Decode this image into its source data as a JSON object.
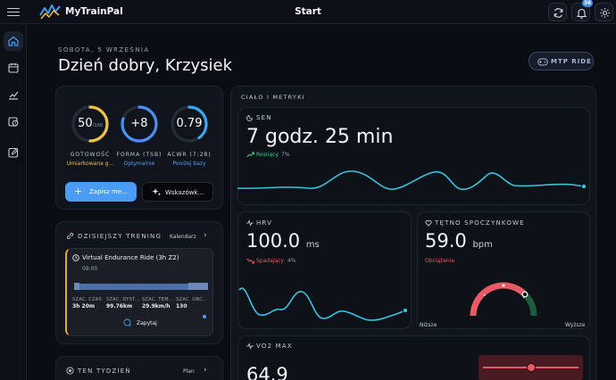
{
  "app": {
    "brand": "MyTrainPal",
    "page_title": "Start",
    "notification_count": "36",
    "icons": {
      "menu": "menu-icon",
      "refresh": "refresh-icon",
      "bell": "bell-icon",
      "settings": "gear-icon"
    }
  },
  "sidebar": {
    "items": [
      {
        "icon": "home-icon",
        "active": true
      },
      {
        "icon": "calendar-icon",
        "active": false
      },
      {
        "icon": "chart-icon",
        "active": false
      },
      {
        "icon": "clock-calendar-icon",
        "active": false
      },
      {
        "icon": "edit-icon",
        "active": false
      }
    ]
  },
  "header": {
    "date": "SOBOTA, 5 WRZEŚNIA",
    "greeting": "Dzień dobry, Krzysiek",
    "mtp_ride_label": "MTP RIDE"
  },
  "readiness": {
    "rings": [
      {
        "value": "50",
        "suffix": "/100",
        "label": "GOTOWOŚĆ",
        "sub": "Umiarkowana g...",
        "sub_color": "#f0c048",
        "color": "#f0c048",
        "fraction": 0.5
      },
      {
        "value": "+8",
        "suffix": "",
        "label": "FORMA (TSB)",
        "sub": "Optymalnie",
        "sub_color": "#5b9cf5",
        "color": "#4c8ef2",
        "fraction": 0.8
      },
      {
        "value": "0.79",
        "suffix": "",
        "label": "ACWR (7:28)",
        "sub": "Poniżej bazy",
        "sub_color": "#5b9cf5",
        "color": "#3aa8f0",
        "fraction": 0.4
      }
    ],
    "save_button": "Zapisz me...",
    "tips_button": "Wskazówk..."
  },
  "training": {
    "title": "DZISIEJSZY TRENING",
    "calendar_link": "Kalendarz",
    "workout_name": "Virtual Endurance Ride (3h Z2)",
    "time": "08:00",
    "stats": [
      {
        "label": "SZAC. CZAS",
        "value": "3h 20m"
      },
      {
        "label": "SZAC. DYST...",
        "value": "99.76km"
      },
      {
        "label": "SZAC. TEM...",
        "value": "29.9km/h"
      },
      {
        "label": "SZAC. OBC...",
        "value": "130"
      }
    ],
    "planned_label": "Zapytaj"
  },
  "week": {
    "title": "TEN TYDZIEŃ",
    "plan_link": "Plan"
  },
  "body_metrics": {
    "title": "CIAŁO I METRYKI",
    "sleep": {
      "label": "SEN",
      "value": "7 godz. 25 min",
      "trend": "Rosnący",
      "trend_pct": "7%"
    },
    "hrv": {
      "label": "HRV",
      "value": "100.0",
      "unit": "ms",
      "trend": "Spadający",
      "trend_pct": "4%"
    },
    "rhr": {
      "label": "TĘTNO SPOCZYNKOWE",
      "value": "59.0",
      "unit": "bpm",
      "status": "Obciążenie",
      "low": "Niższe",
      "high": "Wyższe"
    },
    "vo2": {
      "label": "VO2 MAX",
      "value": "64.9"
    }
  },
  "colors": {
    "accent": "#4a9cf5",
    "teal": "#3ec2e0",
    "up": "#3ed08a",
    "down": "#f05a5a"
  }
}
